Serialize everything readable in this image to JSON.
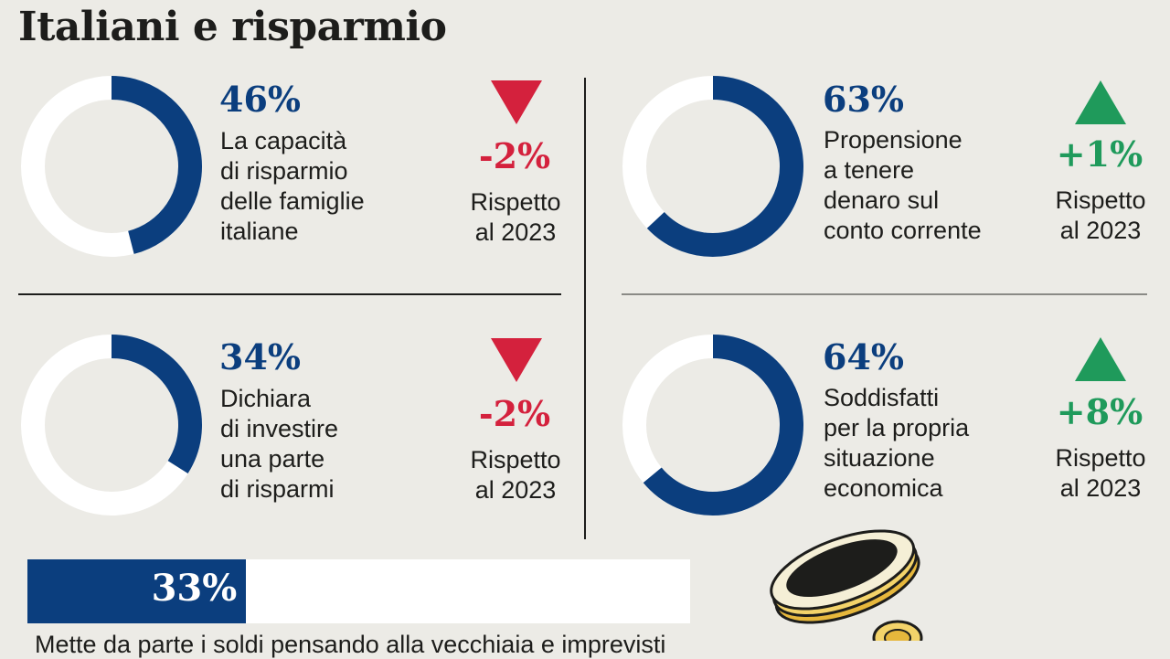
{
  "title": "Italiani e risparmio",
  "colors": {
    "primary": "#0b3e7e",
    "track": "#ffffff",
    "negative": "#d4213d",
    "positive": "#1f9a5b",
    "background": "#ecebe6"
  },
  "chart_data": [
    {
      "type": "pie",
      "value_percent": 46,
      "label": "46%",
      "description": "La capacità\ndi risparmio\ndelle famiglie\nitaliane",
      "change": "-2%",
      "direction": "down",
      "comparison": "Rispetto\nal 2023"
    },
    {
      "type": "pie",
      "value_percent": 63,
      "label": "63%",
      "description": "Propensione\na tenere\ndenaro sul\nconto corrente",
      "change": "+1%",
      "direction": "up",
      "comparison": "Rispetto\nal 2023"
    },
    {
      "type": "pie",
      "value_percent": 34,
      "label": "34%",
      "description": "Dichiara\ndi investire\nuna parte\ndi risparmi",
      "change": "-2%",
      "direction": "down",
      "comparison": "Rispetto\nal 2023"
    },
    {
      "type": "pie",
      "value_percent": 64,
      "label": "64%",
      "description": "Soddisfatti\nper la propria\nsituazione\neconomica",
      "change": "+8%",
      "direction": "up",
      "comparison": "Rispetto\nal 2023"
    },
    {
      "type": "bar",
      "value_percent": 33,
      "label": "33%",
      "caption": "Mette da parte i soldi pensando alla vecchiaia e imprevisti"
    }
  ]
}
